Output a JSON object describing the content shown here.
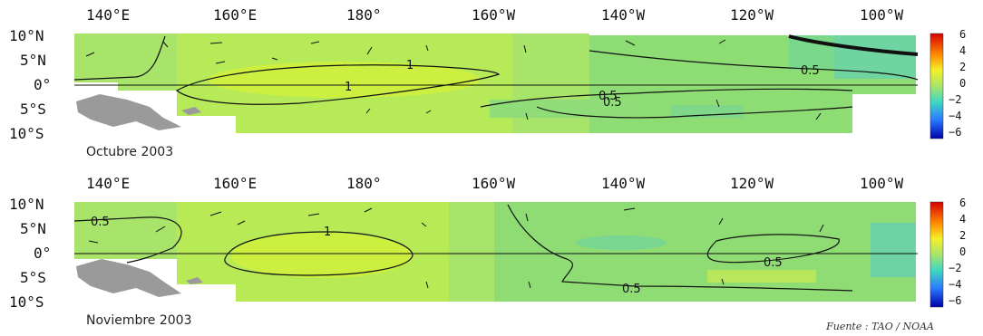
{
  "panels": [
    {
      "month_label": "Octubre 2003",
      "x_ticks": [
        "140°E",
        "160°E",
        "180°",
        "160°W",
        "140°W",
        "120°W",
        "100°W"
      ],
      "y_ticks": [
        "10°N",
        "5°N",
        "0°",
        "5°S",
        "10°S"
      ],
      "colorbar_ticks": [
        "6",
        "4",
        "2",
        "0",
        "−2",
        "−4",
        "−6"
      ],
      "contour_labels": [
        "1",
        "1",
        "0.5",
        "0.5",
        "0.5"
      ]
    },
    {
      "month_label": "Noviembre 2003",
      "x_ticks": [
        "140°E",
        "160°E",
        "180°",
        "160°W",
        "140°W",
        "120°W",
        "100°W"
      ],
      "y_ticks": [
        "10°N",
        "5°N",
        "0°",
        "5°S",
        "10°S"
      ],
      "colorbar_ticks": [
        "6",
        "4",
        "2",
        "0",
        "−2",
        "−4",
        "−6"
      ],
      "contour_labels": [
        "0.5",
        "1",
        "0.5",
        "0.5"
      ]
    }
  ],
  "source": "Fuente : TAO / NOAA",
  "colors": {
    "field_green": "#9ee06a",
    "field_yellowgreen": "#c8f04a",
    "field_cyan": "#6fe0b0",
    "land_gray": "#9a9a9a"
  }
}
